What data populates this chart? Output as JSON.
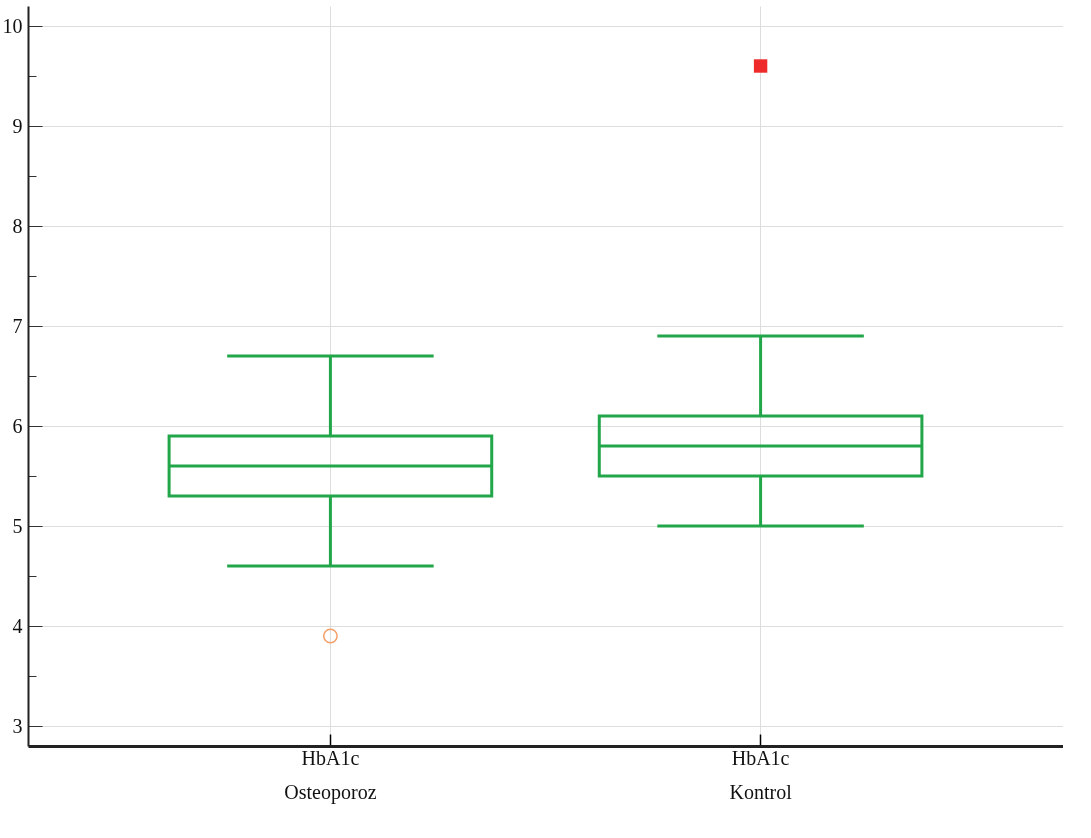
{
  "chart_data": {
    "type": "box",
    "categories": [
      "HbA1c\nOsteoporoz",
      "HbA1c\nKontrol"
    ],
    "ylim": [
      2.8,
      10.2
    ],
    "yticks": [
      3,
      {
        "value": 3.5,
        "label": null
      },
      4,
      {
        "value": 4.5,
        "label": null
      },
      5,
      {
        "value": 5.5,
        "label": null
      },
      6,
      {
        "value": 6.5,
        "label": null
      },
      7,
      {
        "value": 7.5,
        "label": null
      },
      8,
      {
        "value": 8.5,
        "label": null
      },
      9,
      {
        "value": 9.5,
        "label": null
      },
      10
    ],
    "grid": true,
    "series": [
      {
        "color": "#22a64a",
        "boxes": [
          {
            "low": 4.6,
            "q1": 5.3,
            "median": 5.6,
            "q3": 5.9,
            "high": 6.7
          },
          {
            "low": 5.0,
            "q1": 5.5,
            "median": 5.8,
            "q3": 6.1,
            "high": 6.9
          }
        ]
      },
      {
        "type": "scatter",
        "x": [
          "HbA1c\nOsteoporoz"
        ],
        "values": [
          3.9
        ],
        "color": "#f4a06a",
        "marker": "circle"
      },
      {
        "type": "scatter",
        "x": [
          "HbA1c\nKontrol"
        ],
        "values": [
          9.6
        ],
        "color": "#ee2a2a",
        "marker": "square"
      }
    ]
  }
}
